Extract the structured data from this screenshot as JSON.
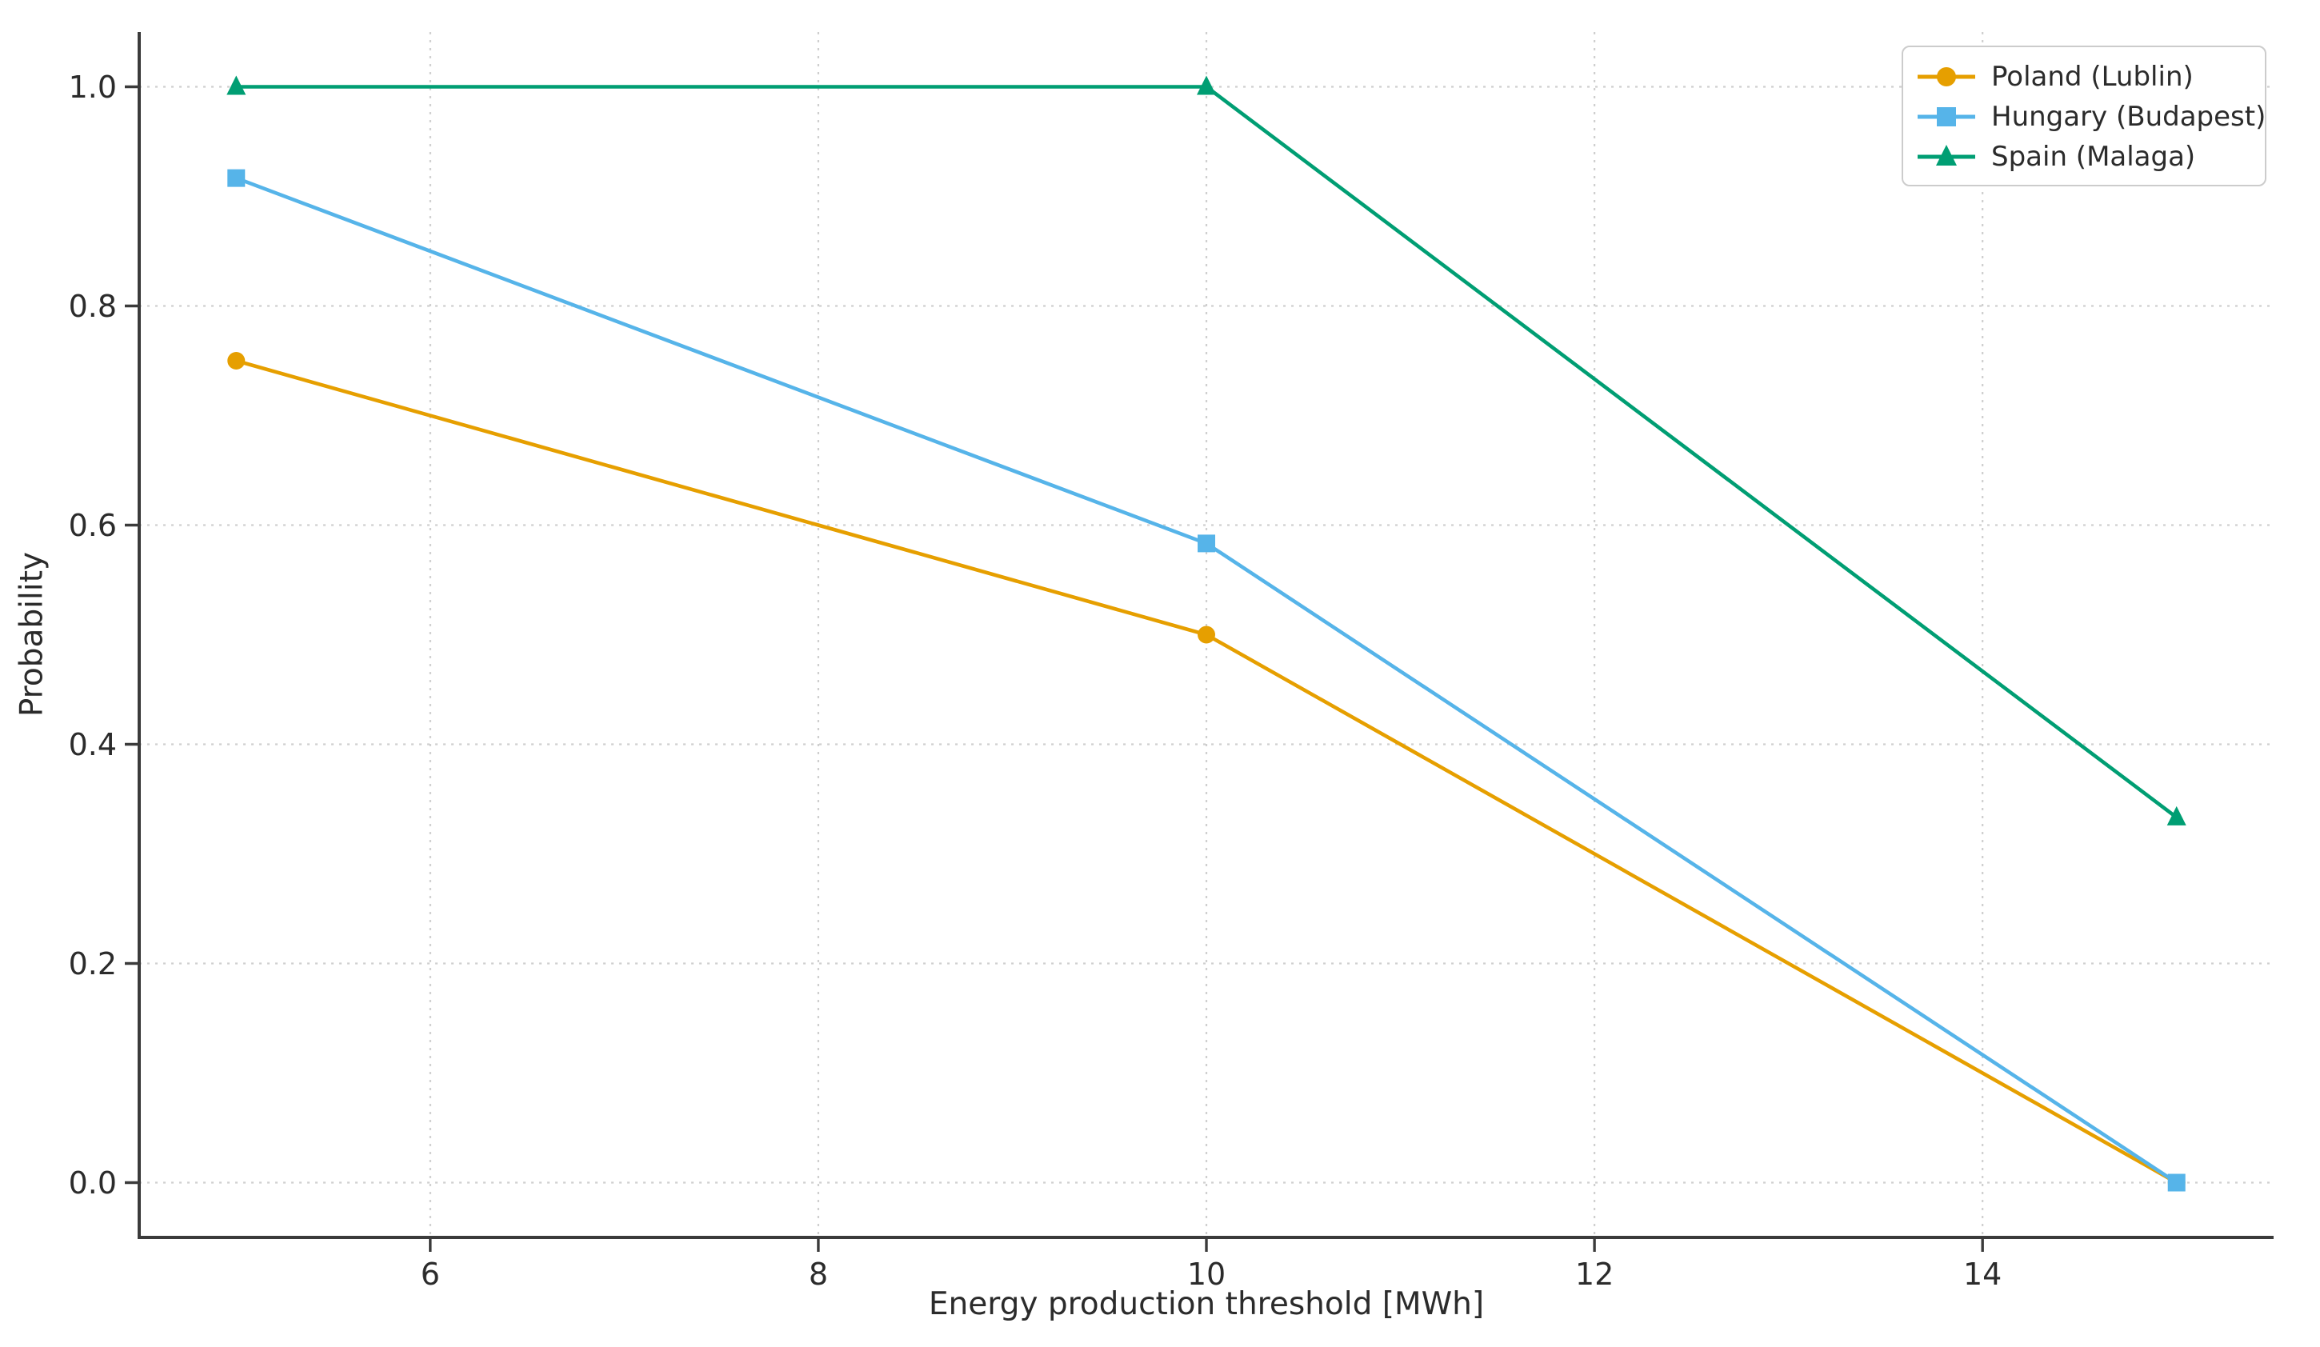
{
  "chart_data": {
    "type": "line",
    "title": "",
    "xlabel": "Energy production threshold [MWh]",
    "ylabel": "Probability",
    "x": [
      5,
      10,
      15
    ],
    "series": [
      {
        "name": "Poland (Lublin)",
        "color": "#E69F00",
        "marker": "circle",
        "values": [
          0.75,
          0.5,
          0.0
        ]
      },
      {
        "name": "Hungary (Budapest)",
        "color": "#56B4E9",
        "marker": "square",
        "values": [
          0.9167,
          0.5833,
          0.0
        ]
      },
      {
        "name": "Spain (Malaga)",
        "color": "#009E73",
        "marker": "triangle",
        "values": [
          1.0,
          1.0,
          0.3333
        ]
      }
    ],
    "xlim": [
      4.5,
      15.5
    ],
    "ylim": [
      -0.05,
      1.05
    ],
    "xticks": [
      6,
      8,
      10,
      12,
      14
    ],
    "xtick_labels": [
      "6",
      "8",
      "10",
      "12",
      "14"
    ],
    "yticks": [
      0.0,
      0.2,
      0.4,
      0.6,
      0.8,
      1.0
    ],
    "ytick_labels": [
      "0.0",
      "0.2",
      "0.4",
      "0.6",
      "0.8",
      "1.0"
    ],
    "grid": true,
    "grid_style": "dashed",
    "legend_position": "upper right"
  },
  "style": {
    "background": "#ffffff",
    "grid_color": "#cfcfcf",
    "spine_color": "#3b3b3b",
    "tick_color": "#3b3b3b",
    "text_color": "#2b2b2b",
    "legend_border_color": "#cccccc"
  }
}
